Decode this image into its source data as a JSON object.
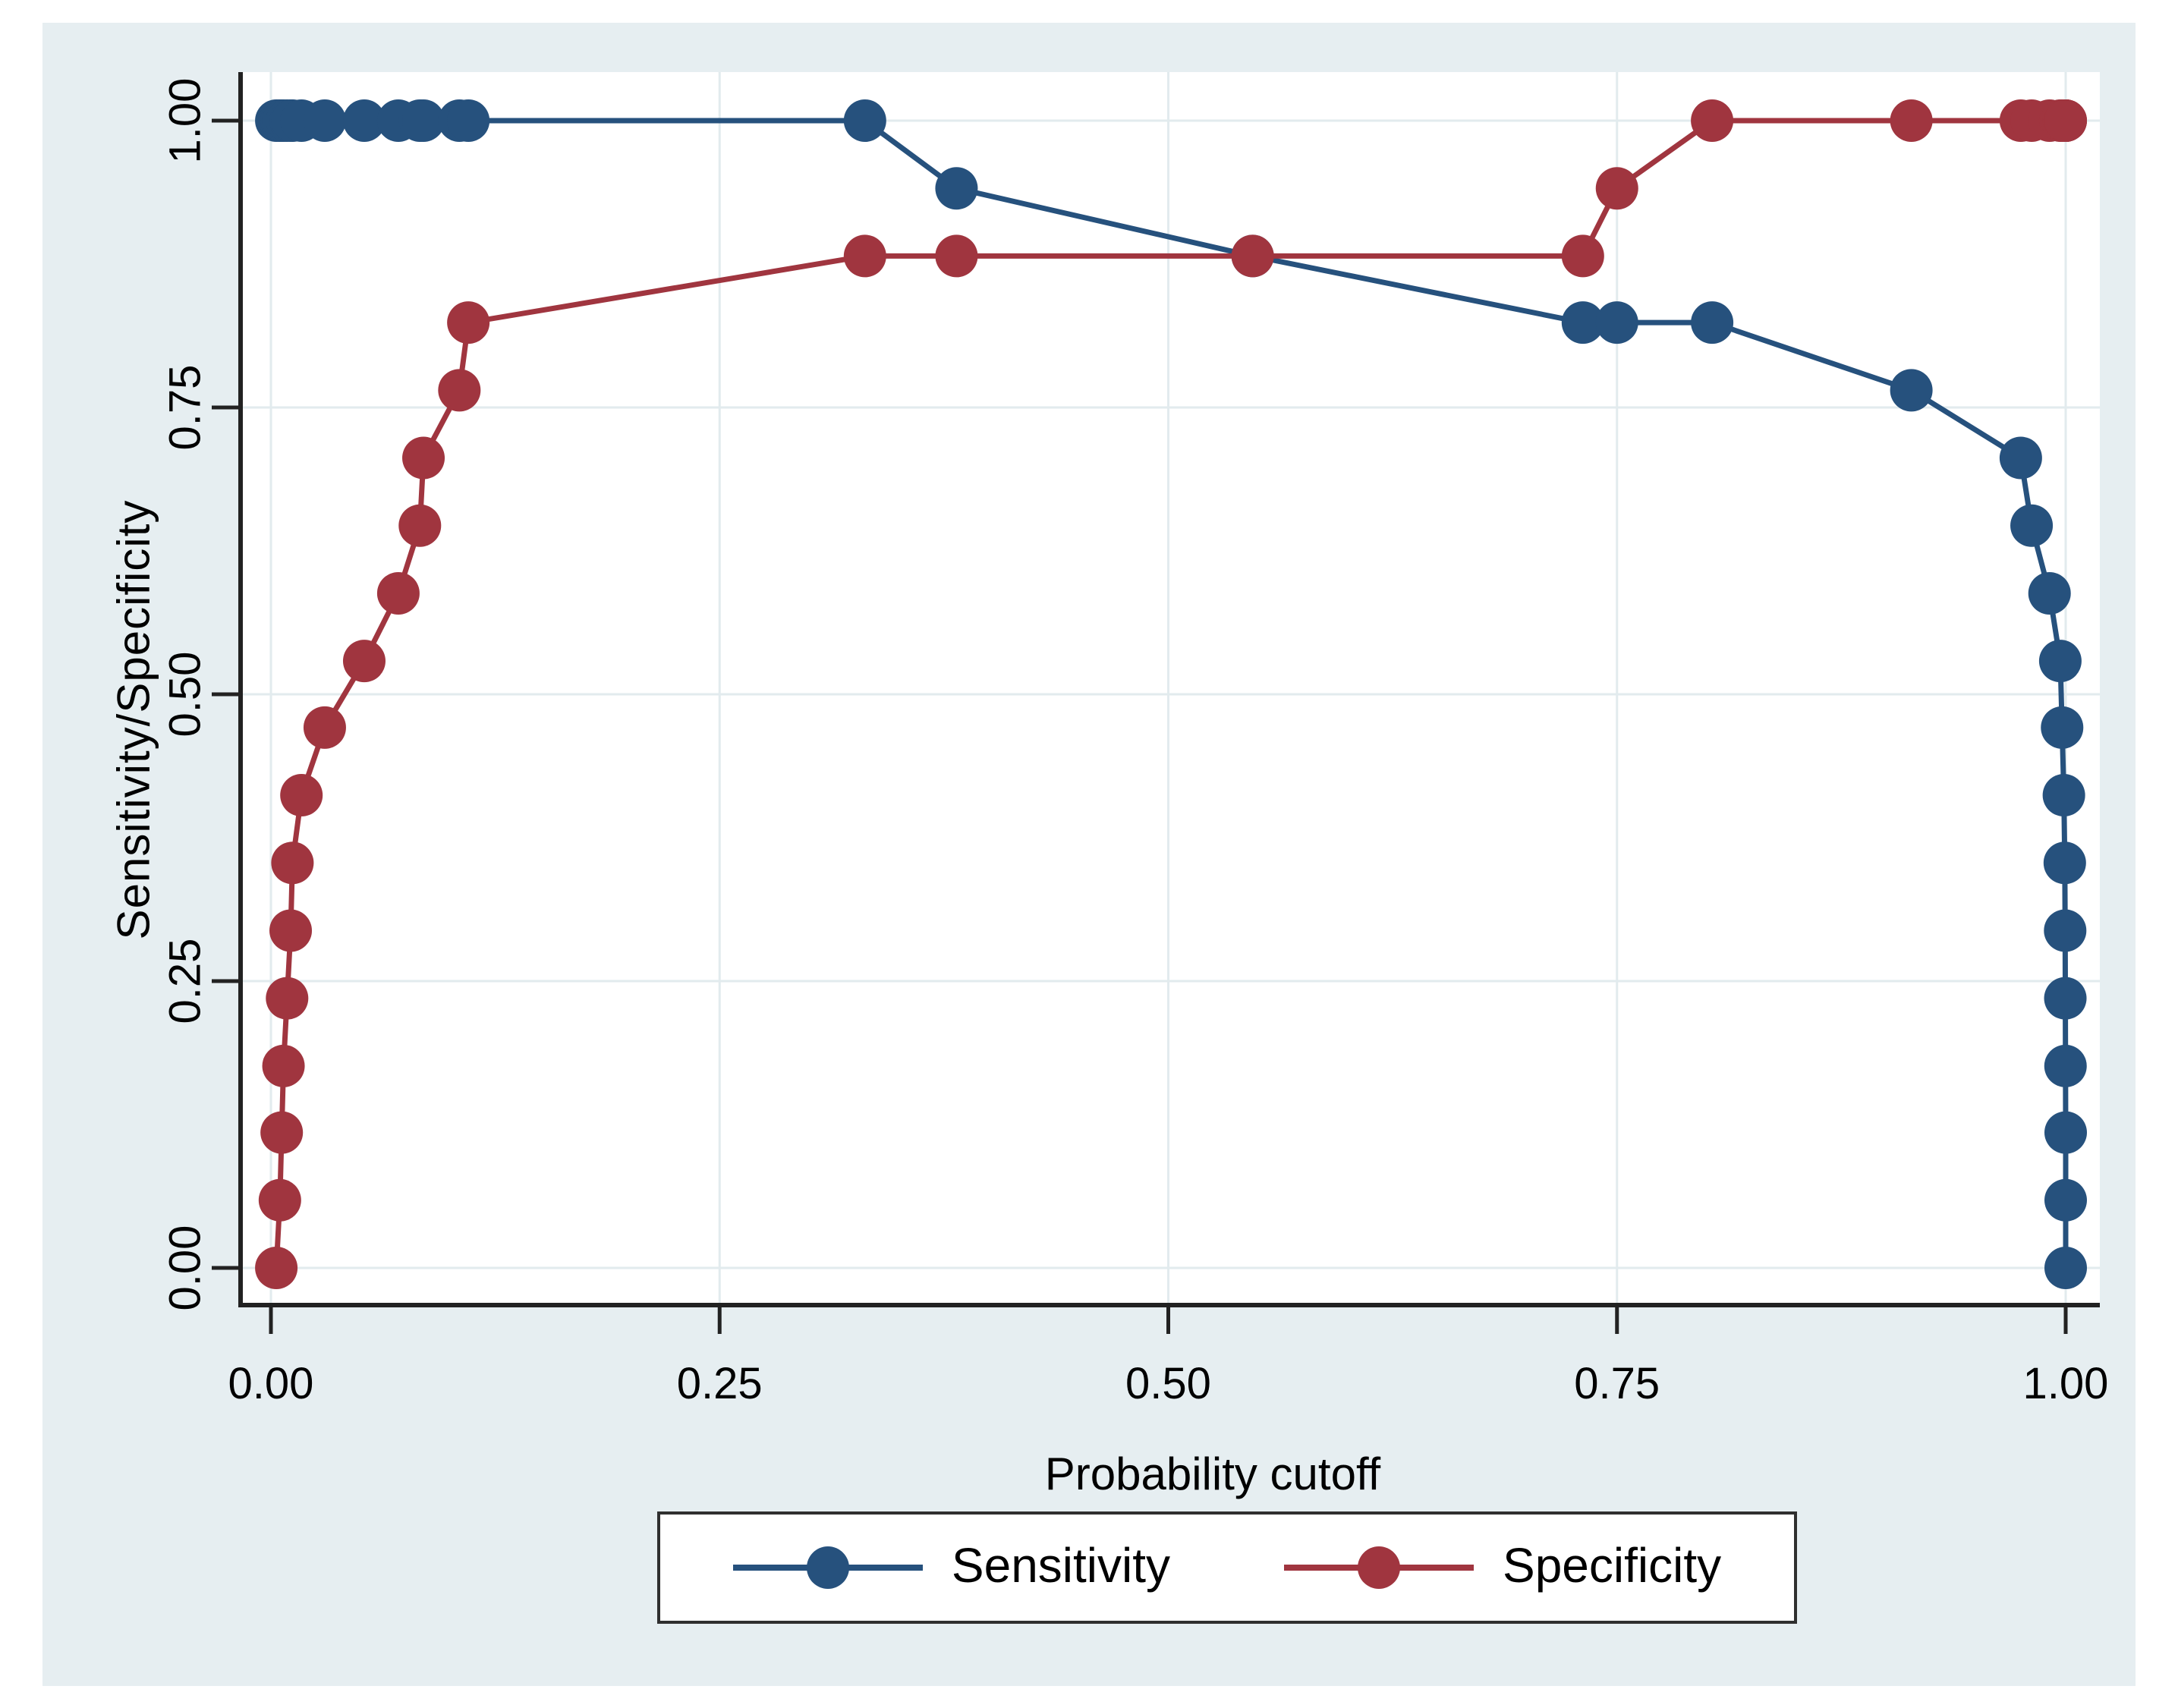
{
  "chart_data": {
    "type": "line",
    "title": "",
    "xlabel": "Probability cutoff",
    "ylabel": "Sensitivity/Specificity",
    "x_ticks": [
      "0.00",
      "0.25",
      "0.50",
      "0.75",
      "1.00"
    ],
    "y_ticks": [
      "0.00",
      "0.25",
      "0.50",
      "0.75",
      "1.00"
    ],
    "x_tick_values": [
      0,
      0.25,
      0.5,
      0.75,
      1
    ],
    "y_tick_values": [
      0,
      0.25,
      0.5,
      0.75,
      1
    ],
    "xlim": [
      0,
      1
    ],
    "ylim": [
      0,
      1
    ],
    "grid": true,
    "legend_position": "bottom",
    "x": [
      0.003,
      0.005,
      0.006,
      0.007,
      0.009,
      0.011,
      0.012,
      0.017,
      0.03,
      0.052,
      0.071,
      0.083,
      0.085,
      0.105,
      0.11,
      0.331,
      0.382,
      0.547,
      0.731,
      0.75,
      0.803,
      0.914,
      0.975,
      0.981,
      0.991,
      0.997,
      0.998,
      0.999,
      0.9995,
      0.9997,
      0.9998,
      0.9999,
      1.0,
      1.0,
      1.0
    ],
    "series": [
      {
        "name": "Sensitivity",
        "color": "#26517d",
        "values": [
          1.0,
          1.0,
          1.0,
          1.0,
          1.0,
          1.0,
          1.0,
          1.0,
          1.0,
          1.0,
          1.0,
          1.0,
          1.0,
          1.0,
          1.0,
          1.0,
          0.941,
          0.882,
          0.824,
          0.824,
          0.824,
          0.765,
          0.706,
          0.647,
          0.588,
          0.529,
          0.471,
          0.412,
          0.353,
          0.294,
          0.235,
          0.176,
          0.118,
          0.059,
          0.0
        ]
      },
      {
        "name": "Specificity",
        "color": "#a0353f",
        "values": [
          0.0,
          0.059,
          0.118,
          0.176,
          0.235,
          0.294,
          0.353,
          0.412,
          0.471,
          0.529,
          0.588,
          0.647,
          0.706,
          0.765,
          0.824,
          0.882,
          0.882,
          0.882,
          0.882,
          0.941,
          1.0,
          1.0,
          1.0,
          1.0,
          1.0,
          1.0,
          1.0,
          1.0,
          1.0,
          1.0,
          1.0,
          1.0,
          1.0,
          1.0,
          1.0
        ]
      }
    ]
  },
  "legend": {
    "items": [
      {
        "label": "Sensitivity"
      },
      {
        "label": "Specificity"
      }
    ]
  },
  "colors": {
    "sensitivity": "#26517d",
    "specificity": "#a0353f",
    "panel_background": "#e6eef1",
    "plot_background": "#ffffff",
    "gridline": "#e2ebee",
    "axis": "#222222"
  }
}
